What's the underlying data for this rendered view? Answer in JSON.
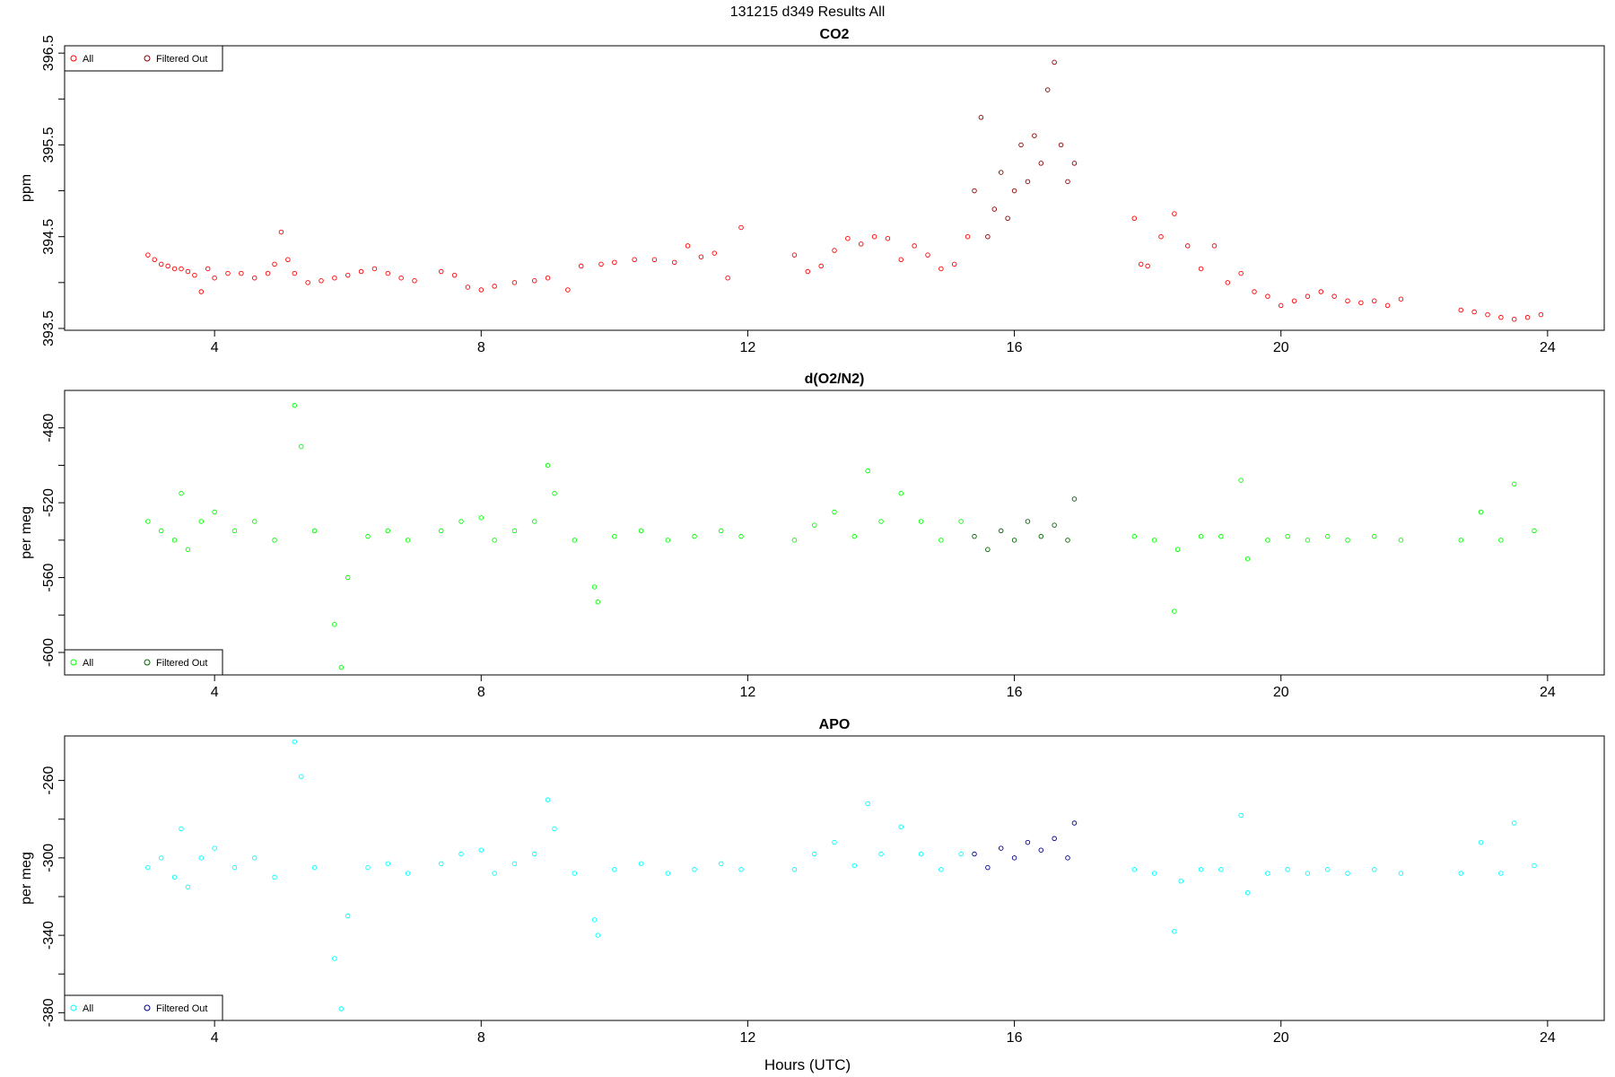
{
  "figure": {
    "title": "131215   d349   Results All",
    "xlabel": "Hours (UTC)"
  },
  "colors": {
    "co2_all": "#ff0000",
    "co2_filtered": "#8b0000",
    "o2_all": "#00ff00",
    "o2_filtered": "#006400",
    "apo_all": "#00ffff",
    "apo_filtered": "#00008b"
  },
  "chart_data": [
    {
      "type": "scatter",
      "title": "CO2",
      "ylabel": "ppm",
      "xlim": [
        1.75,
        24.85
      ],
      "ylim": [
        393.48,
        396.58
      ],
      "xticks": [
        4,
        8,
        12,
        16,
        20,
        24
      ],
      "yticks": [
        393.5,
        394,
        394.5,
        395,
        395.5,
        396,
        396.5
      ],
      "ytick_labels": [
        "393.5",
        "",
        "394.5",
        "",
        "395.5",
        "",
        "396.5"
      ],
      "legend": {
        "position": "top-left",
        "entries": [
          "All",
          "Filtered Out"
        ]
      },
      "series": [
        {
          "name": "All",
          "color": "#ff0000",
          "x": [
            3.0,
            3.1,
            3.2,
            3.3,
            3.4,
            3.5,
            3.6,
            3.7,
            3.8,
            3.9,
            4.0,
            4.2,
            4.4,
            4.6,
            4.8,
            4.9,
            5.0,
            5.1,
            5.2,
            5.4,
            5.6,
            5.8,
            6.0,
            6.2,
            6.4,
            6.6,
            6.8,
            7.0,
            7.4,
            7.6,
            7.8,
            8.0,
            8.2,
            8.5,
            8.8,
            9.0,
            9.3,
            9.5,
            9.8,
            10.0,
            10.3,
            10.6,
            10.9,
            11.1,
            11.3,
            11.5,
            11.7,
            11.9,
            12.7,
            12.9,
            13.1,
            13.3,
            13.5,
            13.7,
            13.9,
            14.1,
            14.3,
            14.5,
            14.7,
            14.9,
            15.1,
            15.3,
            17.8,
            17.9,
            18.0,
            18.2,
            18.4,
            18.6,
            18.8,
            19.0,
            19.2,
            19.4,
            19.6,
            19.8,
            20.0,
            20.2,
            20.4,
            20.6,
            20.8,
            21.0,
            21.2,
            21.4,
            21.6,
            21.8,
            22.7,
            22.9,
            23.1,
            23.3,
            23.5,
            23.7,
            23.9
          ],
          "y": [
            394.3,
            394.25,
            394.2,
            394.18,
            394.15,
            394.15,
            394.12,
            394.08,
            393.9,
            394.15,
            394.05,
            394.1,
            394.1,
            394.05,
            394.1,
            394.2,
            394.55,
            394.25,
            394.1,
            394.0,
            394.02,
            394.05,
            394.08,
            394.12,
            394.15,
            394.1,
            394.05,
            394.02,
            394.12,
            394.08,
            393.95,
            393.92,
            393.96,
            394.0,
            394.02,
            394.05,
            393.92,
            394.18,
            394.2,
            394.22,
            394.25,
            394.25,
            394.22,
            394.4,
            394.28,
            394.32,
            394.05,
            394.6,
            394.3,
            394.12,
            394.18,
            394.35,
            394.48,
            394.42,
            394.5,
            394.48,
            394.25,
            394.4,
            394.3,
            394.15,
            394.2,
            394.5,
            394.7,
            394.2,
            394.18,
            394.5,
            394.75,
            394.4,
            394.15,
            394.4,
            394.0,
            394.1,
            393.9,
            393.85,
            393.75,
            393.8,
            393.85,
            393.9,
            393.85,
            393.8,
            393.78,
            393.8,
            393.75,
            393.82,
            393.7,
            393.68,
            393.65,
            393.62,
            393.6,
            393.62,
            393.65
          ]
        },
        {
          "name": "Filtered Out",
          "color": "#8b0000",
          "x": [
            15.4,
            15.5,
            15.6,
            15.7,
            15.8,
            15.9,
            16.0,
            16.1,
            16.2,
            16.3,
            16.4,
            16.5,
            16.6,
            16.7,
            16.8,
            16.9
          ],
          "y": [
            395.0,
            395.8,
            394.5,
            394.8,
            395.2,
            394.7,
            395.0,
            395.5,
            395.1,
            395.6,
            395.3,
            396.1,
            396.4,
            395.5,
            395.1,
            395.3
          ]
        }
      ]
    },
    {
      "type": "scatter",
      "title": "d(O2/N2)",
      "ylabel": "per meg",
      "xlim": [
        1.75,
        24.85
      ],
      "ylim": [
        -612,
        -460
      ],
      "xticks": [
        4,
        8,
        12,
        16,
        20,
        24
      ],
      "yticks": [
        -600,
        -580,
        -560,
        -540,
        -520,
        -500,
        -480
      ],
      "ytick_labels": [
        "-600",
        "",
        "-560",
        "",
        "-520",
        "",
        "-480"
      ],
      "legend": {
        "position": "bottom-left",
        "entries": [
          "All",
          "Filtered Out"
        ]
      },
      "series": [
        {
          "name": "All",
          "color": "#00ff00",
          "x": [
            3.0,
            3.2,
            3.4,
            3.5,
            3.6,
            3.8,
            4.0,
            4.3,
            4.6,
            4.9,
            5.2,
            5.3,
            5.5,
            5.8,
            5.9,
            6.0,
            6.3,
            6.6,
            6.9,
            7.4,
            7.7,
            8.0,
            8.2,
            8.5,
            8.8,
            9.0,
            9.1,
            9.4,
            9.7,
            9.75,
            10.0,
            10.4,
            10.8,
            11.2,
            11.6,
            11.9,
            12.7,
            13.0,
            13.3,
            13.6,
            13.8,
            14.0,
            14.3,
            14.6,
            14.9,
            15.2,
            17.8,
            18.1,
            18.4,
            18.45,
            18.8,
            19.1,
            19.4,
            19.5,
            19.8,
            20.1,
            20.4,
            20.7,
            21.0,
            21.4,
            21.8,
            22.7,
            23.0,
            23.3,
            23.5,
            23.8
          ],
          "y": [
            -530,
            -535,
            -540,
            -515,
            -545,
            -530,
            -525,
            -535,
            -530,
            -540,
            -468,
            -490,
            -535,
            -585,
            -608,
            -560,
            -538,
            -535,
            -540,
            -535,
            -530,
            -528,
            -540,
            -535,
            -530,
            -500,
            -515,
            -540,
            -565,
            -573,
            -538,
            -535,
            -540,
            -538,
            -535,
            -538,
            -540,
            -532,
            -525,
            -538,
            -503,
            -530,
            -515,
            -530,
            -540,
            -530,
            -538,
            -540,
            -578,
            -545,
            -538,
            -538,
            -508,
            -550,
            -540,
            -538,
            -540,
            -538,
            -540,
            -538,
            -540,
            -540,
            -525,
            -540,
            -510,
            -535
          ]
        },
        {
          "name": "Filtered Out",
          "color": "#006400",
          "x": [
            15.4,
            15.6,
            15.8,
            16.0,
            16.2,
            16.4,
            16.6,
            16.8,
            16.9
          ],
          "y": [
            -538,
            -545,
            -535,
            -540,
            -530,
            -538,
            -532,
            -540,
            -518
          ]
        }
      ]
    },
    {
      "type": "scatter",
      "title": "APO",
      "ylabel": "per meg",
      "xlim": [
        1.75,
        24.85
      ],
      "ylim": [
        -384,
        -237
      ],
      "xticks": [
        4,
        8,
        12,
        16,
        20,
        24
      ],
      "yticks": [
        -380,
        -360,
        -340,
        -320,
        -300,
        -280,
        -260
      ],
      "ytick_labels": [
        "-380",
        "",
        "-340",
        "",
        "-300",
        "",
        "-260"
      ],
      "legend": {
        "position": "bottom-left",
        "entries": [
          "All",
          "Filtered Out"
        ]
      },
      "series": [
        {
          "name": "All",
          "color": "#00ffff",
          "x": [
            3.0,
            3.2,
            3.4,
            3.5,
            3.6,
            3.8,
            4.0,
            4.3,
            4.6,
            4.9,
            5.2,
            5.3,
            5.5,
            5.8,
            5.9,
            6.0,
            6.3,
            6.6,
            6.9,
            7.4,
            7.7,
            8.0,
            8.2,
            8.5,
            8.8,
            9.0,
            9.1,
            9.4,
            9.7,
            9.75,
            10.0,
            10.4,
            10.8,
            11.2,
            11.6,
            11.9,
            12.7,
            13.0,
            13.3,
            13.6,
            13.8,
            14.0,
            14.3,
            14.6,
            14.9,
            15.2,
            17.8,
            18.1,
            18.4,
            18.5,
            18.8,
            19.1,
            19.4,
            19.5,
            19.8,
            20.1,
            20.4,
            20.7,
            21.0,
            21.4,
            21.8,
            22.7,
            23.0,
            23.3,
            23.5,
            23.8
          ],
          "y": [
            -305,
            -300,
            -310,
            -285,
            -315,
            -300,
            -295,
            -305,
            -300,
            -310,
            -240,
            -258,
            -305,
            -352,
            -378,
            -330,
            -305,
            -303,
            -308,
            -303,
            -298,
            -296,
            -308,
            -303,
            -298,
            -270,
            -285,
            -308,
            -332,
            -340,
            -306,
            -303,
            -308,
            -306,
            -303,
            -306,
            -306,
            -298,
            -292,
            -304,
            -272,
            -298,
            -284,
            -298,
            -306,
            -298,
            -306,
            -308,
            -338,
            -312,
            -306,
            -306,
            -278,
            -318,
            -308,
            -306,
            -308,
            -306,
            -308,
            -306,
            -308,
            -308,
            -292,
            -308,
            -282,
            -304
          ]
        },
        {
          "name": "Filtered Out",
          "color": "#00008b",
          "x": [
            15.4,
            15.6,
            15.8,
            16.0,
            16.2,
            16.4,
            16.6,
            16.8,
            16.9
          ],
          "y": [
            -298,
            -305,
            -295,
            -300,
            -292,
            -296,
            -290,
            -300,
            -282
          ]
        }
      ]
    }
  ]
}
